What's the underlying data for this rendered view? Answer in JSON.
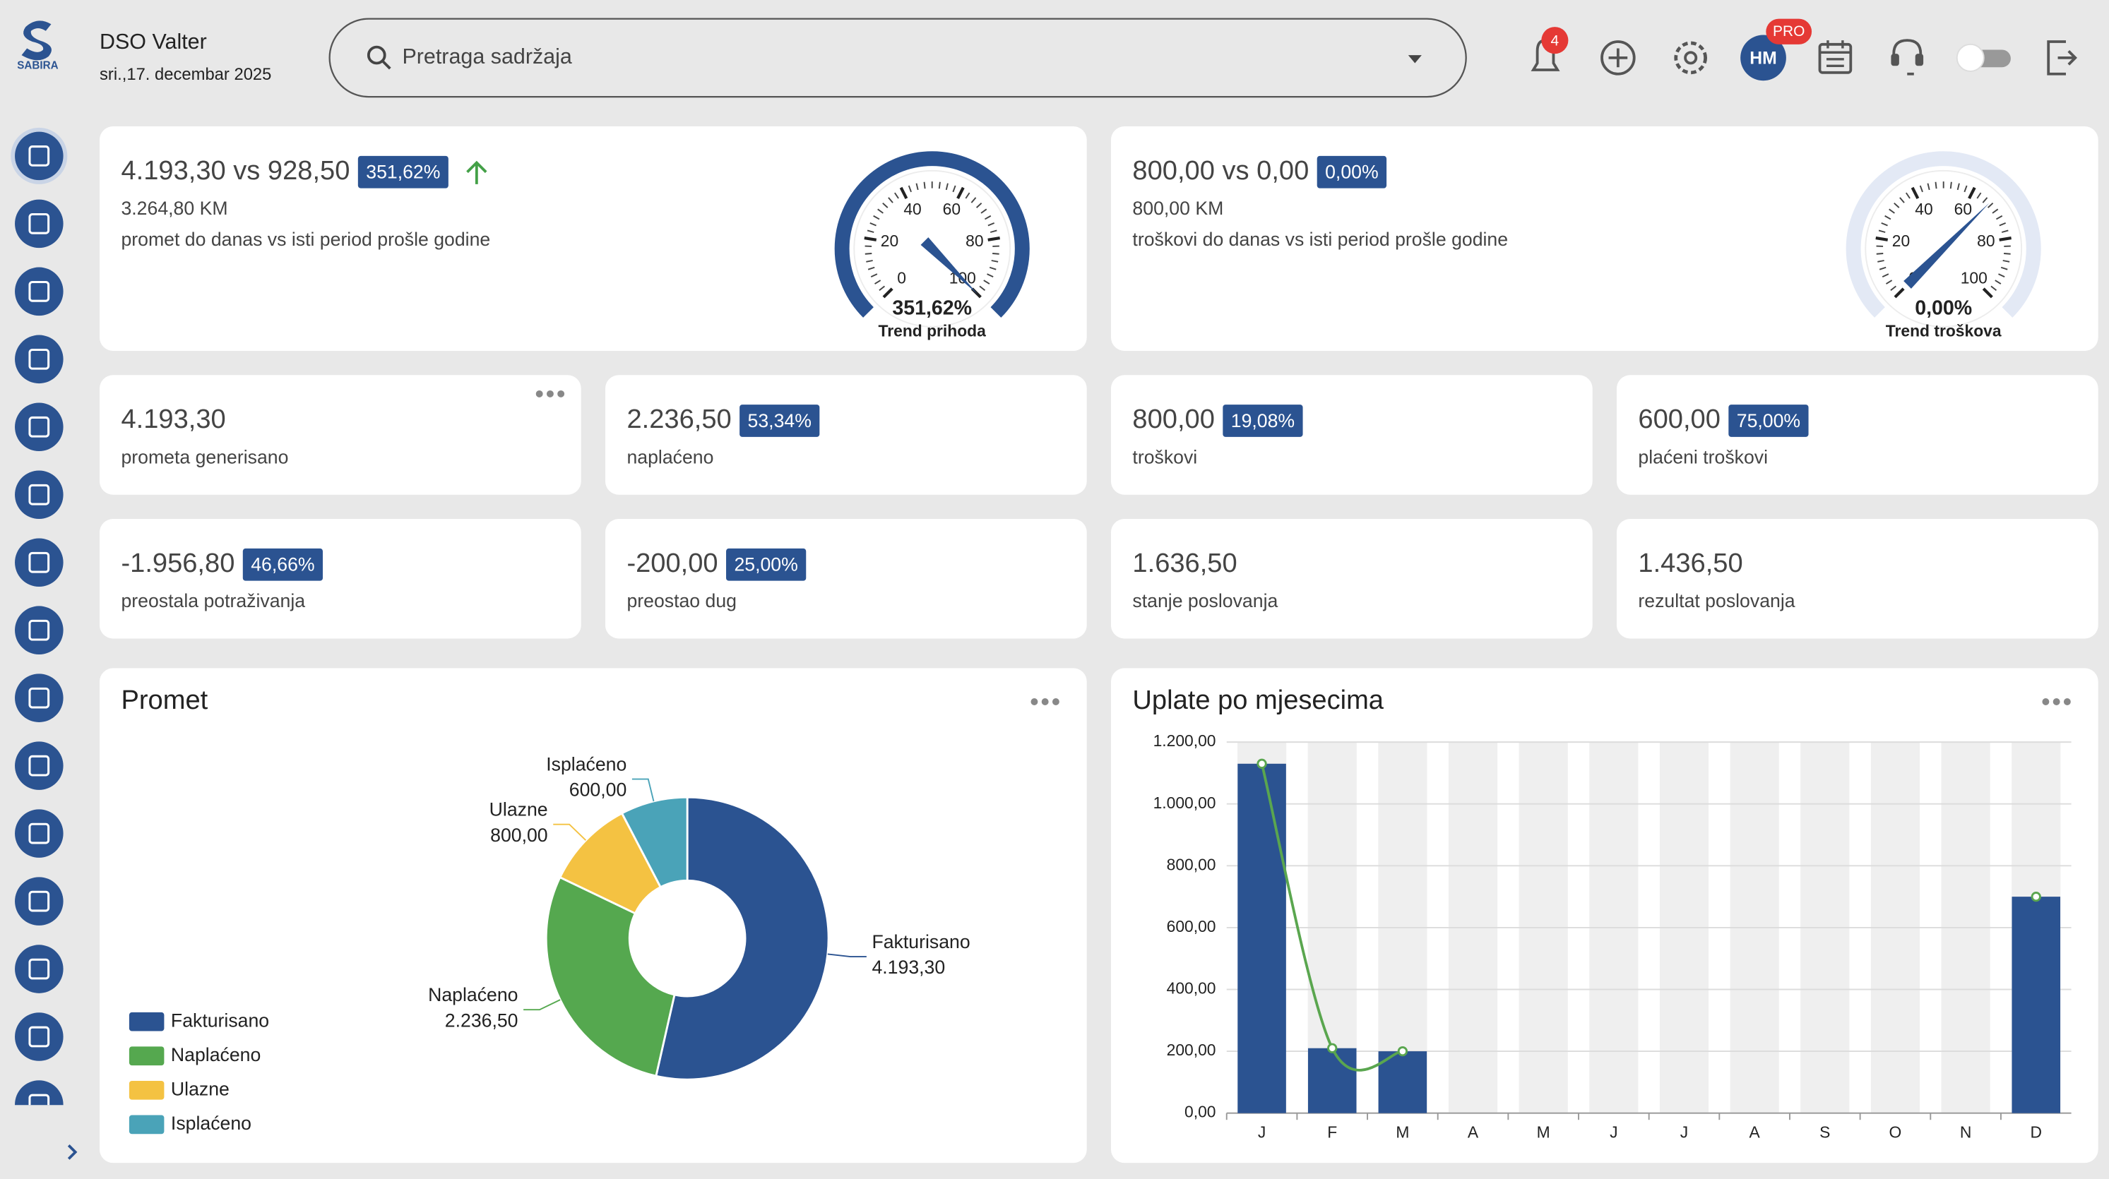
{
  "header": {
    "brand": "SABIRA",
    "user": "DSO Valter",
    "date": "sri.,17. decembar 2025",
    "search_placeholder": "Pretraga sadržaja",
    "notifications": "4",
    "avatar": "HM",
    "badge": "PRO"
  },
  "trend_cards": [
    {
      "value": "4.193,30 vs 928,50",
      "badge": "351,62%",
      "amount": "3.264,80 KM",
      "desc": "promet do danas vs isti period prošle godine",
      "gauge_value": "351,62%",
      "gauge_title": "Trend prihoda"
    },
    {
      "value": "800,00 vs 0,00",
      "badge": "0,00%",
      "amount": "800,00 KM",
      "desc": "troškovi do danas vs isti period prošle godine",
      "gauge_value": "0,00%",
      "gauge_title": "Trend troškova"
    }
  ],
  "gauge_ticks": [
    0,
    20,
    40,
    60,
    80,
    100
  ],
  "kpis": [
    {
      "value": "4.193,30",
      "label": "prometa generisano"
    },
    {
      "value": "2.236,50",
      "badge": "53,34%",
      "label": "naplaćeno"
    },
    {
      "value": "800,00",
      "badge": "19,08%",
      "label": "troškovi"
    },
    {
      "value": "600,00",
      "badge": "75,00%",
      "label": "plaćeni troškovi"
    },
    {
      "value": "-1.956,80",
      "badge": "46,66%",
      "label": "preostala potraživanja"
    },
    {
      "value": "-200,00",
      "badge": "25,00%",
      "label": "preostao dug"
    },
    {
      "value": "1.636,50",
      "label": "stanje poslovanja"
    },
    {
      "value": "1.436,50",
      "label": "rezultat poslovanja"
    }
  ],
  "chart_data": [
    {
      "type": "pie",
      "title": "Promet",
      "categories": [
        "Fakturisano",
        "Naplaćeno",
        "Ulazne",
        "Isplaćeno"
      ],
      "values": [
        4193.3,
        2236.5,
        800,
        600
      ],
      "value_labels": [
        "4.193,30",
        "2.236,50",
        "800,00",
        "600,00"
      ],
      "colors": [
        "#2b5391",
        "#55a84f",
        "#f4c242",
        "#4aa3b8"
      ]
    },
    {
      "type": "bar",
      "title": "Uplate po mjesecima",
      "categories": [
        "J",
        "F",
        "M",
        "A",
        "M",
        "J",
        "J",
        "A",
        "S",
        "O",
        "N",
        "D"
      ],
      "series": [
        {
          "type": "bar",
          "color": "#2b5391",
          "values": [
            1130,
            210,
            200,
            0,
            0,
            0,
            0,
            0,
            0,
            0,
            0,
            700
          ]
        },
        {
          "type": "line",
          "color": "#5aa64f",
          "values": [
            1130,
            210,
            200,
            null,
            null,
            null,
            null,
            null,
            null,
            null,
            null,
            700
          ]
        }
      ],
      "ylim": [
        0,
        1200
      ],
      "yticks": [
        {
          "value": 0,
          "label": "0,00"
        },
        {
          "value": 200,
          "label": "200,00"
        },
        {
          "value": 400,
          "label": "400,00"
        },
        {
          "value": 600,
          "label": "600,00"
        },
        {
          "value": 800,
          "label": "800,00"
        },
        {
          "value": 1000,
          "label": "1.000,00"
        },
        {
          "value": 1200,
          "label": "1.200,00"
        }
      ],
      "grid": true
    }
  ]
}
